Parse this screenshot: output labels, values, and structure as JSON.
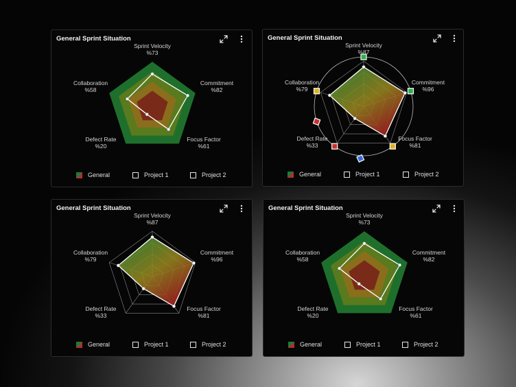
{
  "axis_labels": [
    "Sprint Velocity",
    "Commitment",
    "Focus Factor",
    "Defect Rate",
    "Collaboration"
  ],
  "cards": [
    {
      "title": "General Sprint Situation",
      "variant": "pentagon",
      "values": [
        "%73",
        "%82",
        "%61",
        "%20",
        "%58"
      ],
      "chart_data": {
        "type": "radar",
        "axes": [
          "Sprint Velocity",
          "Commitment",
          "Focus Factor",
          "Defect Rate",
          "Collaboration"
        ],
        "values": [
          73,
          82,
          61,
          20,
          58
        ],
        "range": [
          0,
          100
        ]
      },
      "legend": [
        {
          "label": "General",
          "icon": "gradient-swatch"
        },
        {
          "label": "Project 1",
          "icon": "checkbox"
        },
        {
          "label": "Project 2",
          "icon": "checkbox"
        }
      ]
    },
    {
      "title": "General Sprint Situation",
      "variant": "circle",
      "values": [
        "%87",
        "%96",
        "%81",
        "%33",
        "%79"
      ],
      "chart_data": {
        "type": "radar",
        "axes": [
          "Sprint Velocity",
          "Commitment",
          "Focus Factor",
          "Defect Rate",
          "Collaboration"
        ],
        "values": [
          87,
          96,
          81,
          33,
          79
        ],
        "range": [
          0,
          100
        ]
      },
      "legend": [
        {
          "label": "General",
          "icon": "gradient-swatch"
        },
        {
          "label": "Project 1",
          "icon": "checkbox"
        },
        {
          "label": "Project 2",
          "icon": "checkbox"
        }
      ]
    },
    {
      "title": "General Sprint Situation",
      "variant": "outline",
      "values": [
        "%87",
        "%96",
        "%81",
        "%33",
        "%79"
      ],
      "chart_data": {
        "type": "radar",
        "axes": [
          "Sprint Velocity",
          "Commitment",
          "Focus Factor",
          "Defect Rate",
          "Collaboration"
        ],
        "values": [
          87,
          96,
          81,
          33,
          79
        ],
        "range": [
          0,
          100
        ]
      },
      "legend": [
        {
          "label": "General",
          "icon": "gradient-swatch"
        },
        {
          "label": "Project 1",
          "icon": "checkbox"
        },
        {
          "label": "Project 2",
          "icon": "checkbox"
        }
      ]
    },
    {
      "title": "General Sprint Situation",
      "variant": "pentagon",
      "values": [
        "%73",
        "%82",
        "%61",
        "%20",
        "%58"
      ],
      "chart_data": {
        "type": "radar",
        "axes": [
          "Sprint Velocity",
          "Commitment",
          "Focus Factor",
          "Defect Rate",
          "Collaboration"
        ],
        "values": [
          73,
          82,
          61,
          20,
          58
        ],
        "range": [
          0,
          100
        ]
      },
      "legend": [
        {
          "label": "General",
          "icon": "gradient-swatch"
        },
        {
          "label": "Project 1",
          "icon": "checkbox"
        },
        {
          "label": "Project 2",
          "icon": "checkbox"
        }
      ]
    }
  ],
  "colors": {
    "green": "#1f6f2c",
    "yellow": "#8a8a1e",
    "red": "#8c1c1c",
    "line": "#ffffff",
    "marker_green": "#2fae4e",
    "marker_yellow": "#e0b020",
    "marker_red": "#c83030",
    "marker_blue": "#3a6ad8"
  }
}
